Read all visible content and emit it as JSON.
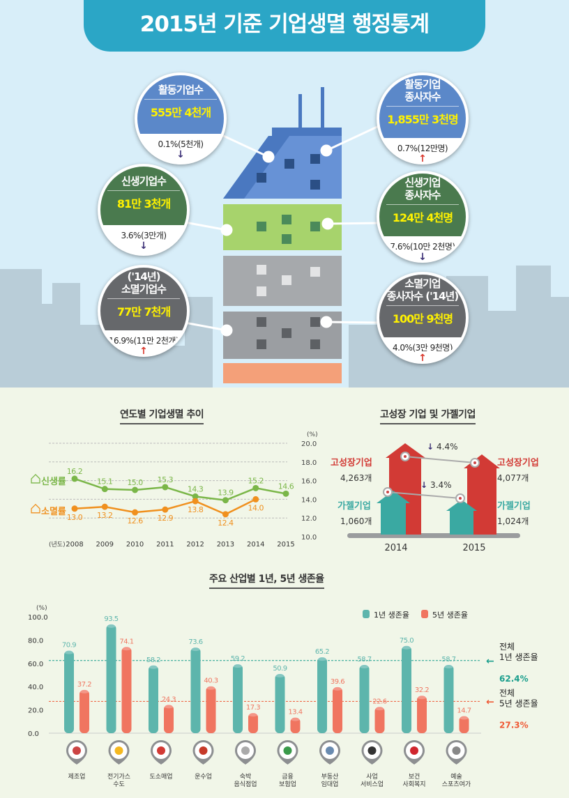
{
  "title": "2015년 기준 기업생멸 행정통계",
  "stats": [
    {
      "title": "활동기업수",
      "value": "555만 4천개",
      "change": "0.1%(5천개)",
      "direction": "down",
      "color": "#5b88c9"
    },
    {
      "title": "활동기업\n종사자수",
      "value": "1,855만 3천명",
      "change": "0.7%(12만명)",
      "direction": "up",
      "color": "#5b88c9"
    },
    {
      "title": "신생기업수",
      "value": "81만 3천개",
      "change": "3.6%(3만개)",
      "direction": "down",
      "color": "#4a7a4e"
    },
    {
      "title": "신생기업\n종사자수",
      "value": "124만 4천명",
      "change": "7.6%(10만 2천명)",
      "direction": "down",
      "color": "#4a7a4e"
    },
    {
      "title": "('14년)\n소멸기업수",
      "value": "77만 7천개",
      "change": "16.9%(11만 2천개)",
      "direction": "up",
      "color": "#66686b"
    },
    {
      "title": "소멸기업\n종사자수 ('14년)",
      "value": "100만 9천명",
      "change": "4.0%(3만 9천명)",
      "direction": "up",
      "color": "#66686b"
    }
  ],
  "arrows": {
    "up": "↑",
    "down": "↓",
    "up_color": "#d9392e",
    "down_color": "#3b2f75"
  },
  "chart_data": [
    {
      "type": "line",
      "title": "연도별 기업생멸 추이",
      "xlabel": "(년도)",
      "ylabel": "(%)",
      "x": [
        "2008",
        "2009",
        "2010",
        "2011",
        "2012",
        "2013",
        "2014",
        "2015"
      ],
      "ylim": [
        10,
        20
      ],
      "yticks": [
        "10.0",
        "12.0",
        "14.0",
        "16.0",
        "18.0",
        "20.0"
      ],
      "grid": true,
      "series": [
        {
          "name": "신생률",
          "color": "#7ab648",
          "values": [
            16.2,
            15.1,
            15.0,
            15.3,
            14.3,
            13.9,
            15.2,
            14.6
          ],
          "labels": [
            "16.2",
            "15.1",
            "15.0",
            "15.3",
            "14.3",
            "13.9",
            "15.2",
            "14.6"
          ]
        },
        {
          "name": "소멸률",
          "color": "#f0901e",
          "values": [
            13.0,
            13.2,
            12.6,
            12.9,
            13.8,
            12.4,
            14.0,
            null
          ],
          "labels": [
            "13.0",
            "13.2",
            "12.6",
            "12.9",
            "13.8",
            "12.4",
            "14.0",
            null
          ]
        }
      ]
    },
    {
      "type": "bar",
      "title": "고성장 기업 및 가젤기업",
      "categories": [
        "2014",
        "2015"
      ],
      "series": [
        {
          "name": "고성장기업",
          "color": "#d23a35",
          "values": [
            4263,
            4077
          ],
          "labels": [
            "4,263개",
            "4,077개"
          ],
          "change": "4.4%"
        },
        {
          "name": "가젤기업",
          "color": "#3aa9a2",
          "values": [
            1060,
            1024
          ],
          "labels": [
            "1,060개",
            "1,024개"
          ],
          "change": "3.4%"
        }
      ]
    },
    {
      "type": "bar",
      "title": "주요 산업별 1년, 5년 생존율",
      "ylabel": "(%)",
      "ylim": [
        0,
        100
      ],
      "yticks": [
        "0.0",
        "20.0",
        "40.0",
        "60.0",
        "80.0",
        "100.0"
      ],
      "categories": [
        "제조업",
        "전기가스\n수도",
        "도소매업",
        "운수업",
        "숙박\n음식점업",
        "금융\n보험업",
        "부동산\n임대업",
        "사업\n서비스업",
        "보건\n사회복지",
        "예술\n스포츠여가"
      ],
      "category_icons": [
        "tools-icon",
        "lightbulb-icon",
        "shopping-cart-icon",
        "truck-icon",
        "food-cloche-icon",
        "money-icon",
        "building-icon",
        "headset-person-icon",
        "heart-icon",
        "film-clapper-icon"
      ],
      "legend_position": "top-right",
      "series": [
        {
          "name": "1년 생존율",
          "color": "#5db5ac",
          "values": [
            70.9,
            93.5,
            58.2,
            73.6,
            59.2,
            50.9,
            65.2,
            58.7,
            75.0,
            58.7
          ]
        },
        {
          "name": "5년 생존율",
          "color": "#f07560",
          "values": [
            37.2,
            74.1,
            24.3,
            40.3,
            17.3,
            13.4,
            39.6,
            22.6,
            32.2,
            14.7
          ]
        }
      ],
      "reference_lines": [
        {
          "label": "전체\n1년 생존율",
          "value": 62.4,
          "value_text": "62.4%",
          "color": "#1a9e8c"
        },
        {
          "label": "전체\n5년 생존율",
          "value": 27.3,
          "value_text": "27.3%",
          "color": "#ef5a36"
        }
      ]
    }
  ]
}
